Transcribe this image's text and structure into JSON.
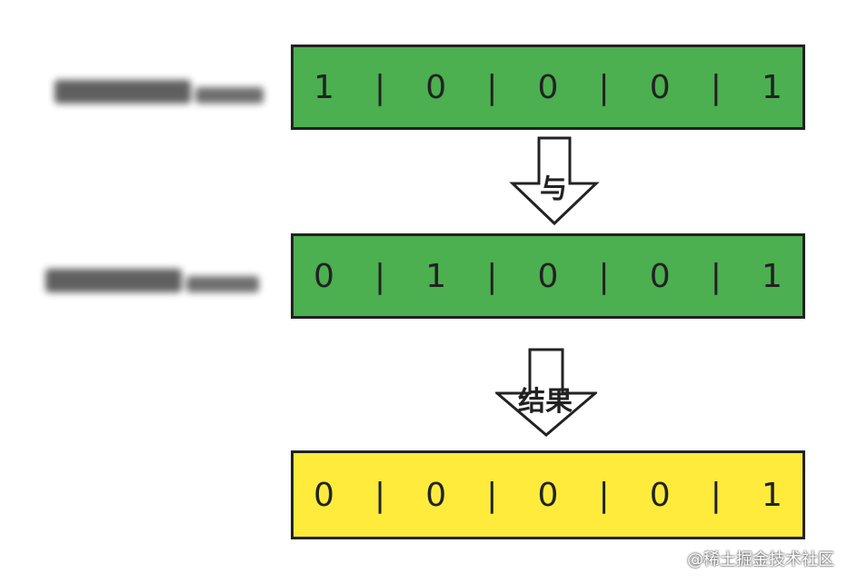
{
  "rows": [
    {
      "label": "",
      "bits": [
        "1",
        "|",
        "0",
        "|",
        "0",
        "|",
        "0",
        "|",
        "1"
      ],
      "fill": "#4caf50"
    },
    {
      "label": "",
      "bits": [
        "0",
        "|",
        "1",
        "|",
        "0",
        "|",
        "0",
        "|",
        "1"
      ],
      "fill": "#4caf50"
    },
    {
      "label": "",
      "bits": [
        "0",
        "|",
        "0",
        "|",
        "0",
        "|",
        "0",
        "|",
        "1"
      ],
      "fill": "#ffeb3b"
    }
  ],
  "arrows": [
    {
      "label": "与"
    },
    {
      "label": "结果"
    }
  ],
  "watermark": "@稀土掘金技术社区"
}
